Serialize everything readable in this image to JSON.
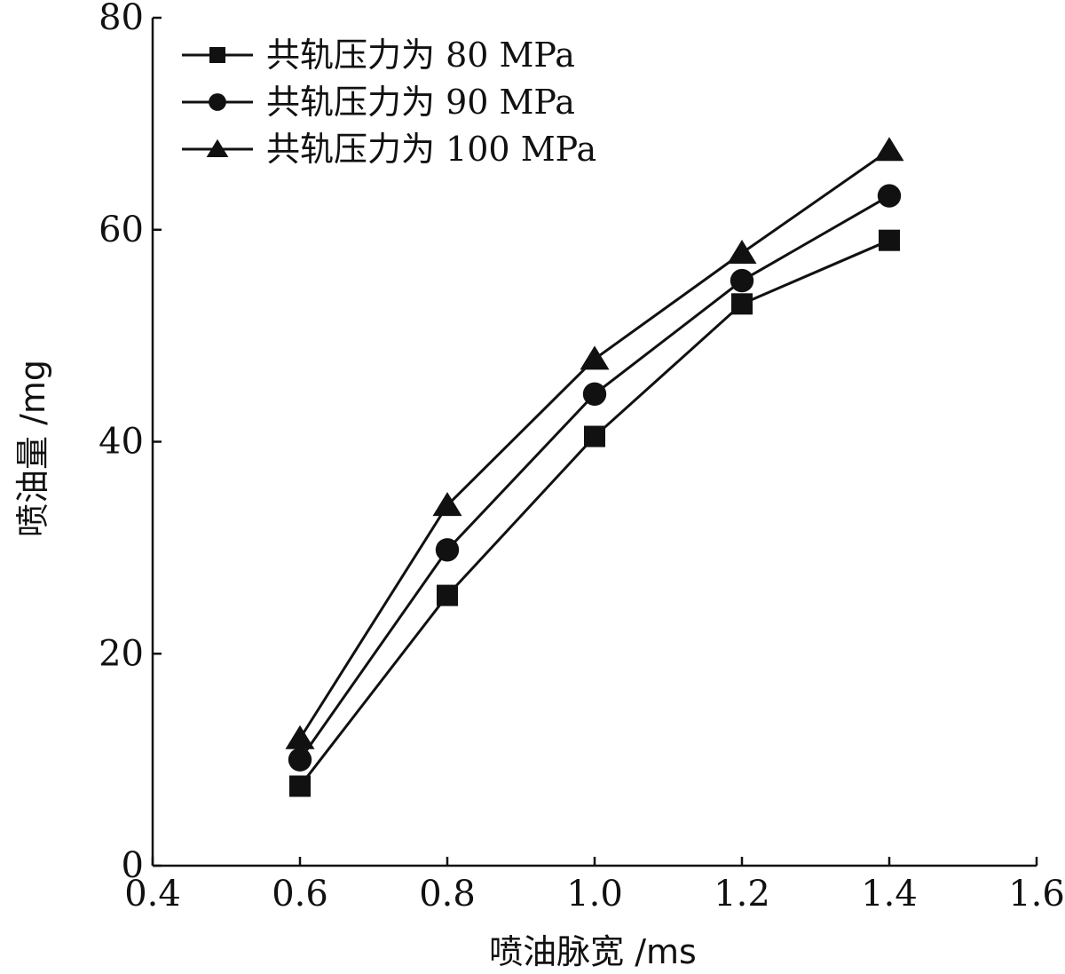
{
  "chart_data": {
    "type": "line",
    "title": "",
    "xlabel": "喷油脉宽 /ms",
    "ylabel": "喷油量 /mg",
    "xlim": [
      0.4,
      1.6
    ],
    "ylim": [
      0,
      80
    ],
    "x_ticks": [
      "0.4",
      "0.6",
      "0.8",
      "1.0",
      "1.2",
      "1.4",
      "1.6"
    ],
    "y_ticks": [
      "0",
      "20",
      "40",
      "60",
      "80"
    ],
    "grid": false,
    "legend_position": "top-left",
    "x": [
      0.6,
      0.8,
      1.0,
      1.2,
      1.4
    ],
    "series": [
      {
        "name": "共轨压力为 80 MPa",
        "marker": "square",
        "values": [
          7.5,
          25.5,
          40.5,
          53,
          59
        ]
      },
      {
        "name": "共轨压力为 90 MPa",
        "marker": "circle",
        "values": [
          10,
          29.8,
          44.5,
          55.2,
          63.2
        ]
      },
      {
        "name": "共轨压力为 100 MPa",
        "marker": "triangle",
        "values": [
          12,
          34,
          47.8,
          57.8,
          67.5
        ]
      }
    ]
  }
}
